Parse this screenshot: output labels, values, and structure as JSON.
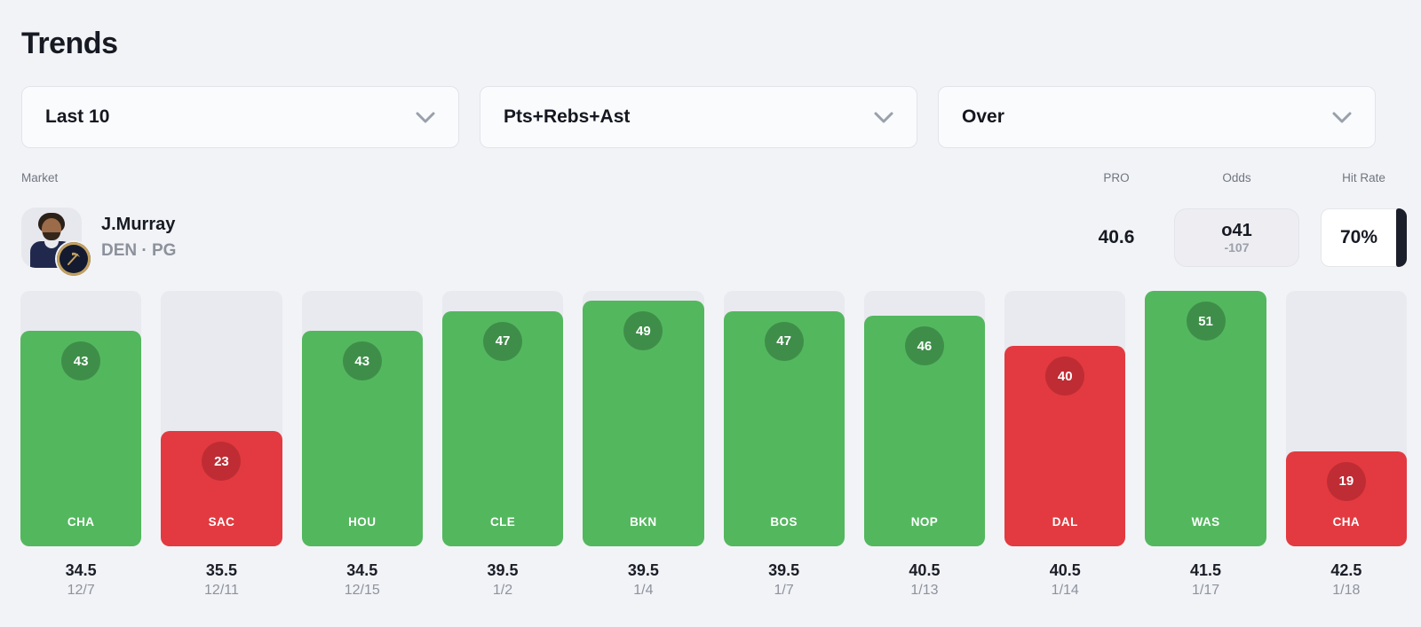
{
  "page": {
    "title": "Trends"
  },
  "filters": [
    {
      "label": "Last 10"
    },
    {
      "label": "Pts+Rebs+Ast"
    },
    {
      "label": "Over"
    }
  ],
  "market_header": {
    "market_label": "Market",
    "pro_label": "PRO",
    "odds_label": "Odds",
    "hit_rate_label": "Hit Rate"
  },
  "player": {
    "name": "J.Murray",
    "team_position": "DEN · PG",
    "pro": "40.6",
    "odds": {
      "line": "o41",
      "price": "-107"
    },
    "hit_rate": "70%"
  },
  "chart_data": {
    "type": "bar",
    "legend": "green = over hit, red = under",
    "ylim": [
      0,
      51
    ],
    "categories": [
      "CHA",
      "SAC",
      "HOU",
      "CLE",
      "BKN",
      "BOS",
      "NOP",
      "DAL",
      "WAS",
      "CHA"
    ],
    "values": [
      43,
      23,
      43,
      47,
      49,
      47,
      46,
      40,
      51,
      19
    ],
    "games": [
      {
        "opponent": "CHA",
        "value": 43,
        "line": "34.5",
        "date": "12/7",
        "result": "over"
      },
      {
        "opponent": "SAC",
        "value": 23,
        "line": "35.5",
        "date": "12/11",
        "result": "under"
      },
      {
        "opponent": "HOU",
        "value": 43,
        "line": "34.5",
        "date": "12/15",
        "result": "over"
      },
      {
        "opponent": "CLE",
        "value": 47,
        "line": "39.5",
        "date": "1/2",
        "result": "over"
      },
      {
        "opponent": "BKN",
        "value": 49,
        "line": "39.5",
        "date": "1/4",
        "result": "over"
      },
      {
        "opponent": "BOS",
        "value": 47,
        "line": "39.5",
        "date": "1/7",
        "result": "over"
      },
      {
        "opponent": "NOP",
        "value": 46,
        "line": "40.5",
        "date": "1/13",
        "result": "over"
      },
      {
        "opponent": "DAL",
        "value": 40,
        "line": "40.5",
        "date": "1/14",
        "result": "under"
      },
      {
        "opponent": "WAS",
        "value": 51,
        "line": "41.5",
        "date": "1/17",
        "result": "over"
      },
      {
        "opponent": "CHA",
        "value": 19,
        "line": "42.5",
        "date": "1/18",
        "result": "under"
      }
    ]
  },
  "colors": {
    "over_fill": "#53b75e",
    "over_badge": "#3e8e49",
    "under_fill": "#e23a40",
    "under_badge": "#bf2c34",
    "track": "#e9eaef",
    "accent_dark": "#1b1e2b"
  }
}
